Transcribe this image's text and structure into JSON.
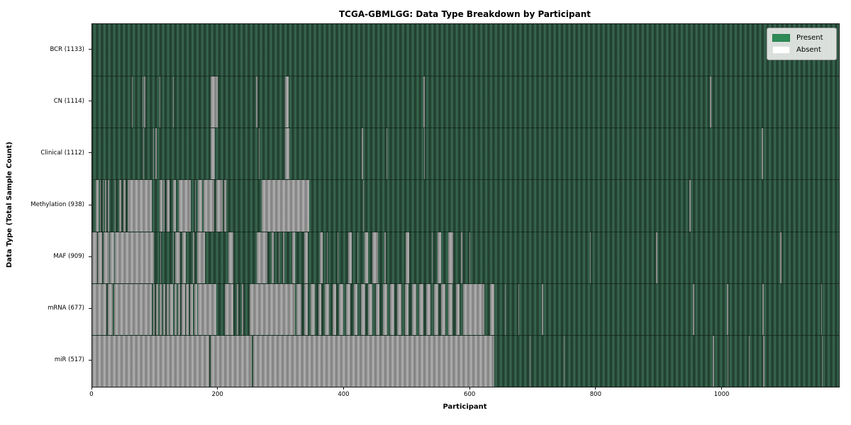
{
  "chart_data": {
    "type": "heatmap",
    "title": "TCGA-GBMLGG: Data Type Breakdown by Participant",
    "xlabel": "Participant",
    "ylabel": "Data Type (Total Sample Count)",
    "x_ticks": [
      0,
      200,
      400,
      600,
      800,
      1000
    ],
    "x_max": 1185,
    "grid": false,
    "legend_position": "upper right",
    "legend": [
      {
        "label": "Present",
        "color": "#2e8b57"
      },
      {
        "label": "Absent",
        "color": "#ffffff"
      }
    ],
    "rendered_absent_color": "#9c9c9c",
    "rows": [
      {
        "name": "BCR",
        "label": "BCR (1133)",
        "total_samples": 1133,
        "absent_ranges": []
      },
      {
        "name": "CN",
        "label": "CN (1114)",
        "total_samples": 1114,
        "absent_ranges": [
          [
            62.5,
            64
          ],
          [
            79.5,
            81
          ],
          [
            82.5,
            84
          ],
          [
            107,
            108.5
          ],
          [
            128,
            129.5
          ],
          [
            188,
            199
          ],
          [
            260.5,
            262
          ],
          [
            306,
            312
          ],
          [
            526,
            527.5
          ],
          [
            980.5,
            982.5
          ]
        ]
      },
      {
        "name": "Clinical",
        "label": "Clinical (1112)",
        "total_samples": 1112,
        "absent_ranges": [
          [
            80.5,
            82
          ],
          [
            96.5,
            98
          ],
          [
            100.5,
            102
          ],
          [
            188,
            195
          ],
          [
            264.5,
            266
          ],
          [
            306,
            313
          ],
          [
            428,
            429.5
          ],
          [
            467,
            468.5
          ],
          [
            526.5,
            528
          ],
          [
            1062.5,
            1064.5
          ]
        ]
      },
      {
        "name": "Methylation",
        "label": "Methylation (938)",
        "total_samples": 938,
        "absent_ranges": [
          [
            5.5,
            10
          ],
          [
            12,
            13
          ],
          [
            17,
            18
          ],
          [
            20,
            22.5
          ],
          [
            24.5,
            26.5
          ],
          [
            35.5,
            37
          ],
          [
            42.5,
            46
          ],
          [
            50,
            52.5
          ],
          [
            56,
            58
          ],
          [
            59,
            94.5
          ],
          [
            106.5,
            111
          ],
          [
            112.5,
            114.5
          ],
          [
            118,
            123
          ],
          [
            128,
            133
          ],
          [
            137,
            156
          ],
          [
            163,
            164
          ],
          [
            167.5,
            175
          ],
          [
            177,
            194
          ],
          [
            197,
            207
          ],
          [
            209,
            213
          ],
          [
            269,
            344
          ],
          [
            429.5,
            431
          ],
          [
            948,
            950
          ]
        ]
      },
      {
        "name": "MAF",
        "label": "MAF (909)",
        "total_samples": 909,
        "absent_ranges": [
          [
            0,
            8
          ],
          [
            9,
            16
          ],
          [
            17.5,
            27
          ],
          [
            28,
            35
          ],
          [
            36.5,
            98
          ],
          [
            107.5,
            109.5
          ],
          [
            128,
            129.5
          ],
          [
            132,
            139.5
          ],
          [
            143,
            149
          ],
          [
            160,
            161.5
          ],
          [
            166,
            179
          ],
          [
            216,
            224
          ],
          [
            261,
            278
          ],
          [
            285,
            288
          ],
          [
            296,
            297.5
          ],
          [
            303,
            305
          ],
          [
            317.5,
            321.5
          ],
          [
            336,
            342
          ],
          [
            361,
            366
          ],
          [
            372,
            373.5
          ],
          [
            389,
            390.5
          ],
          [
            406,
            411.5
          ],
          [
            420.5,
            422
          ],
          [
            432,
            438
          ],
          [
            445,
            453
          ],
          [
            464,
            465.5
          ],
          [
            497,
            503
          ],
          [
            539,
            540.5
          ],
          [
            548,
            554
          ],
          [
            565,
            573
          ],
          [
            585.5,
            587
          ],
          [
            598.5,
            600
          ],
          [
            790,
            791.5
          ],
          [
            895,
            896.5
          ],
          [
            1092,
            1093.5
          ]
        ]
      },
      {
        "name": "mRNA",
        "label": "mRNA (677)",
        "total_samples": 677,
        "absent_ranges": [
          [
            0,
            23
          ],
          [
            25,
            33
          ],
          [
            34.5,
            94.5
          ],
          [
            97,
            99.5
          ],
          [
            101.5,
            104.5
          ],
          [
            106.5,
            110
          ],
          [
            112,
            116
          ],
          [
            118,
            121
          ],
          [
            123,
            128
          ],
          [
            130,
            134
          ],
          [
            136,
            140
          ],
          [
            142,
            147
          ],
          [
            149,
            153
          ],
          [
            155,
            160
          ],
          [
            162,
            166
          ],
          [
            168,
            196.5
          ],
          [
            210.5,
            223.5
          ],
          [
            230,
            232
          ],
          [
            238,
            240
          ],
          [
            250,
            322
          ],
          [
            324,
            332
          ],
          [
            336,
            342
          ],
          [
            347,
            353
          ],
          [
            359,
            364
          ],
          [
            369,
            376
          ],
          [
            381,
            387
          ],
          [
            392,
            398
          ],
          [
            403,
            410
          ],
          [
            415,
            421
          ],
          [
            427,
            433
          ],
          [
            438,
            445
          ],
          [
            450,
            456
          ],
          [
            461,
            468
          ],
          [
            473,
            479
          ],
          [
            484,
            491
          ],
          [
            496,
            502
          ],
          [
            507,
            514
          ],
          [
            519,
            525
          ],
          [
            530,
            537
          ],
          [
            542,
            549
          ],
          [
            554,
            560
          ],
          [
            565,
            572
          ],
          [
            577,
            583
          ],
          [
            588,
            622
          ],
          [
            631,
            638
          ],
          [
            655,
            656.5
          ],
          [
            676,
            677.5
          ],
          [
            714,
            715.5
          ],
          [
            953.5,
            955
          ],
          [
            1007.5,
            1009.5
          ],
          [
            1063,
            1066
          ],
          [
            1156.5,
            1158.5
          ]
        ]
      },
      {
        "name": "miR",
        "label": "miR (517)",
        "total_samples": 517,
        "absent_ranges": [
          [
            0,
            186
          ],
          [
            188,
            253.5
          ],
          [
            255.5,
            638
          ],
          [
            694,
            695.5
          ],
          [
            748.5,
            750
          ],
          [
            985,
            986.5
          ],
          [
            1008.5,
            1010
          ],
          [
            1042,
            1043.5
          ],
          [
            1064.5,
            1067
          ],
          [
            1158,
            1159.5
          ]
        ]
      }
    ]
  }
}
